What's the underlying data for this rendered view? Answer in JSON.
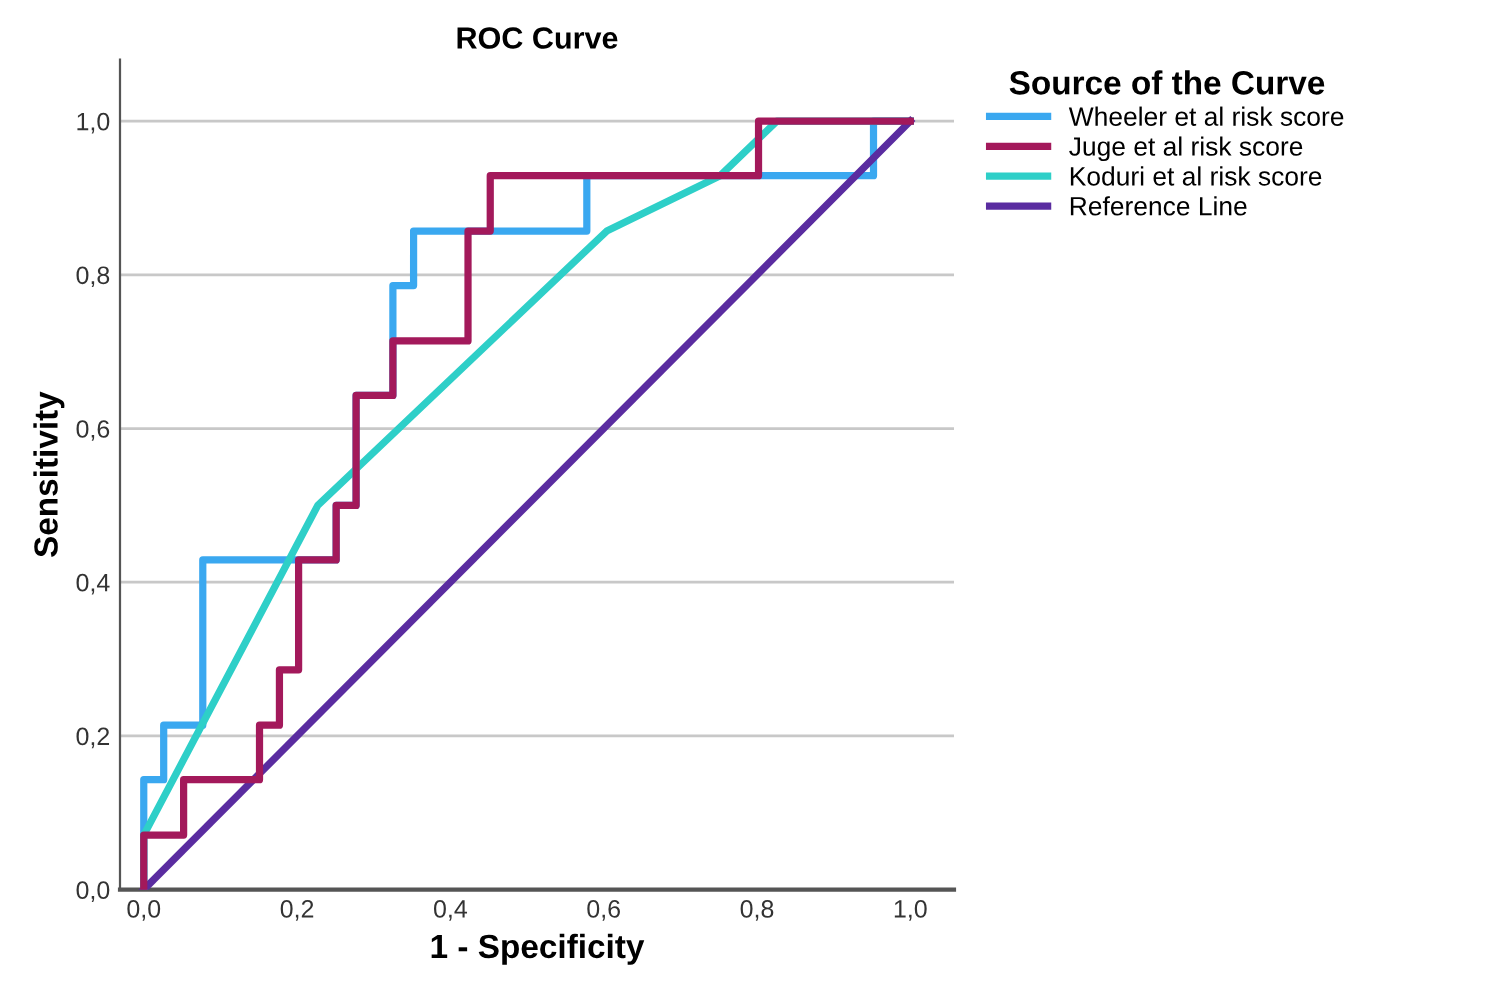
{
  "chart_data": {
    "type": "line",
    "title": "ROC Curve",
    "xlabel": "1 - Specificity",
    "ylabel": "Sensitivity",
    "legend_title": "Source of the Curve",
    "xlim": [
      -0.031,
      1.057
    ],
    "ylim": [
      0,
      1.08
    ],
    "xticks": [
      {
        "value": 0,
        "label": "0,0"
      },
      {
        "value": 0.2,
        "label": "0,2"
      },
      {
        "value": 0.4,
        "label": "0,4"
      },
      {
        "value": 0.6,
        "label": "0,6"
      },
      {
        "value": 0.8,
        "label": "0,8"
      },
      {
        "value": 1,
        "label": "1,0"
      }
    ],
    "yticks": [
      {
        "value": 0,
        "label": "0,0"
      },
      {
        "value": 0.2,
        "label": "0,2"
      },
      {
        "value": 0.4,
        "label": "0,4"
      },
      {
        "value": 0.6,
        "label": "0,6"
      },
      {
        "value": 0.8,
        "label": "0,8"
      },
      {
        "value": 1,
        "label": "1,0"
      }
    ],
    "grid": "y",
    "legend": "right",
    "marker": "none",
    "line_style": "solid",
    "series": [
      {
        "name": "Wheeler et al risk score",
        "color": "#3aa8f0",
        "x": [
          0,
          0,
          0.026,
          0.026,
          0.077,
          0.077,
          0.202,
          0.202,
          0.251,
          0.251,
          0.277,
          0.277,
          0.325,
          0.325,
          0.352,
          0.352,
          0.578,
          0.578,
          0.952,
          0.952,
          1
        ],
        "values": [
          0,
          0.143,
          0.143,
          0.214,
          0.214,
          0.429,
          0.429,
          0.429,
          0.429,
          0.5,
          0.5,
          0.643,
          0.643,
          0.786,
          0.786,
          0.857,
          0.857,
          0.929,
          0.929,
          1,
          1
        ]
      },
      {
        "name": "Juge et al risk score",
        "color": "#a3195b",
        "x": [
          0,
          0,
          0.052,
          0.052,
          0.151,
          0.151,
          0.177,
          0.177,
          0.202,
          0.202,
          0.251,
          0.251,
          0.277,
          0.277,
          0.325,
          0.325,
          0.423,
          0.423,
          0.452,
          0.452,
          0.802,
          0.802,
          1
        ],
        "values": [
          0,
          0.071,
          0.071,
          0.143,
          0.143,
          0.214,
          0.214,
          0.286,
          0.286,
          0.429,
          0.429,
          0.5,
          0.5,
          0.643,
          0.643,
          0.714,
          0.714,
          0.857,
          0.857,
          0.929,
          0.929,
          1,
          1
        ]
      },
      {
        "name": "Koduri et al risk score",
        "color": "#2ecfc8",
        "x": [
          0,
          0,
          0.227,
          0.604,
          0.752,
          0.826,
          1
        ],
        "values": [
          0,
          0.071,
          0.5,
          0.857,
          0.929,
          1,
          1
        ]
      },
      {
        "name": "Reference Line",
        "color": "#5a2ca0",
        "x": [
          0,
          1
        ],
        "values": [
          0,
          1
        ]
      }
    ]
  }
}
